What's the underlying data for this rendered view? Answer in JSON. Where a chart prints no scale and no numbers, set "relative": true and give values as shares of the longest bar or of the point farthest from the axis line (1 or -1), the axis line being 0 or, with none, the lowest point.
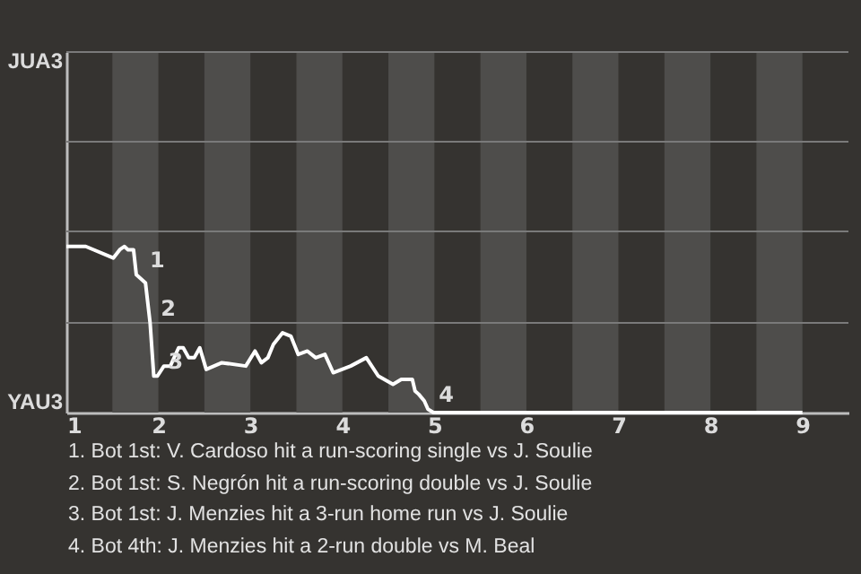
{
  "chart_data": {
    "type": "line",
    "relative": true,
    "x": [
      1.0,
      1.21,
      1.51,
      1.58,
      1.63,
      1.67,
      1.73,
      1.76,
      1.82,
      1.86,
      1.91,
      1.95,
      1.99,
      2.06,
      2.13,
      2.22,
      2.27,
      2.33,
      2.39,
      2.45,
      2.52,
      2.69,
      2.95,
      3.05,
      3.12,
      3.19,
      3.25,
      3.35,
      3.44,
      3.52,
      3.62,
      3.71,
      3.81,
      3.9,
      4.09,
      4.26,
      4.39,
      4.55,
      4.64,
      4.7,
      4.76,
      4.79,
      4.83,
      4.89,
      4.93,
      4.99,
      9
    ],
    "series": [
      {
        "color": "#ffffff",
        "values": [
          1,
          1,
          0.93,
          0.98,
          1,
          0.98,
          0.98,
          0.83,
          0.8,
          0.78,
          0.54,
          0.22,
          0.22,
          0.28,
          0.28,
          0.39,
          0.39,
          0.33,
          0.33,
          0.39,
          0.26,
          0.3,
          0.28,
          0.37,
          0.3,
          0.33,
          0.41,
          0.48,
          0.46,
          0.35,
          0.37,
          0.33,
          0.35,
          0.24,
          0.28,
          0.33,
          0.22,
          0.17,
          0.2,
          0.2,
          0.2,
          0.13,
          0.11,
          0.07,
          0.02,
          0,
          0
        ]
      }
    ],
    "xlim": [
      1,
      9.5
    ],
    "xticks": [
      1,
      2,
      3,
      4,
      5,
      6,
      7,
      8,
      9
    ],
    "ref_lines": [
      {
        "axis": "y",
        "value": 0.54,
        "color": "#7a7a7a"
      },
      {
        "axis": "y",
        "value": 1.09,
        "color": "#7a7a7a"
      },
      {
        "axis": "y",
        "value": 1.63,
        "color": "#7a7a7a"
      },
      {
        "axis": "y",
        "value": 2.17,
        "color": "#7a7a7a"
      }
    ],
    "bands": [
      {
        "axis": "x",
        "from": 1.5,
        "to": 2,
        "color": "#4e4d4b"
      },
      {
        "axis": "x",
        "from": 2.5,
        "to": 3,
        "color": "#4e4d4b"
      },
      {
        "axis": "x",
        "from": 3.5,
        "to": 4,
        "color": "#4e4d4b"
      },
      {
        "axis": "x",
        "from": 4.5,
        "to": 5,
        "color": "#4e4d4b"
      },
      {
        "axis": "x",
        "from": 5.5,
        "to": 6,
        "color": "#4e4d4b"
      },
      {
        "axis": "x",
        "from": 6.5,
        "to": 7,
        "color": "#4e4d4b"
      },
      {
        "axis": "x",
        "from": 7.5,
        "to": 8,
        "color": "#4e4d4b"
      },
      {
        "axis": "x",
        "from": 8.5,
        "to": 9,
        "color": "#4e4d4b"
      }
    ],
    "annotations": [
      "JUA3",
      "YAU3",
      {
        "text": "1",
        "x": 1.79,
        "y": 0.83
      },
      {
        "text": "2",
        "x": 1.91,
        "y": 0.54
      },
      {
        "text": "3",
        "x": 1.99,
        "y": 0.22
      },
      {
        "text": "4",
        "x": 4.93,
        "y": 0.02
      },
      "1. Bot 1st: V. Cardoso hit a run-scoring single vs J. Soulie",
      "2. Bot 1st: S. Negrón hit a run-scoring double vs J. Soulie",
      "3. Bot 1st: J. Menzies hit a 3-run home run vs J. Soulie",
      "4. Bot 4th: J. Menzies hit a 2-run double vs M. Beal"
    ]
  }
}
